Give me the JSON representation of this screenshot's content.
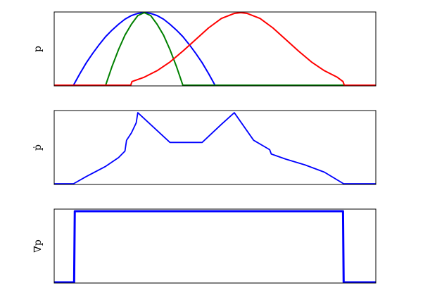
{
  "chart_data": [
    {
      "type": "line",
      "ylabel": "p",
      "xlim": [
        0,
        10
      ],
      "ylim": [
        0,
        1
      ],
      "grid": false,
      "series": [
        {
          "color": "#0000ff",
          "x": [
            0,
            0.6,
            0.8,
            1.0,
            1.2,
            1.4,
            1.6,
            1.8,
            2.0,
            2.2,
            2.4,
            2.6,
            2.8,
            3.0,
            3.2,
            3.4,
            3.6,
            3.8,
            4.0,
            4.2,
            4.4,
            4.6,
            4.8,
            5.0,
            10
          ],
          "y": [
            0,
            0,
            0.16,
            0.31,
            0.44,
            0.56,
            0.67,
            0.76,
            0.84,
            0.91,
            0.96,
            0.99,
            1.0,
            0.99,
            0.96,
            0.91,
            0.84,
            0.76,
            0.67,
            0.56,
            0.44,
            0.31,
            0.16,
            0,
            0
          ]
        },
        {
          "color": "#008000",
          "x": [
            0,
            1.6,
            1.8,
            2.0,
            2.2,
            2.4,
            2.6,
            2.8,
            3.0,
            3.2,
            3.4,
            3.6,
            3.8,
            4.0,
            10
          ],
          "y": [
            0,
            0,
            0.26,
            0.49,
            0.69,
            0.84,
            0.96,
            1.0,
            0.96,
            0.84,
            0.69,
            0.49,
            0.26,
            0,
            0
          ]
        },
        {
          "color": "#ff0000",
          "x": [
            0,
            2.38,
            2.42,
            2.8,
            3.2,
            3.6,
            4.0,
            4.4,
            4.8,
            5.2,
            5.6,
            5.8,
            6.0,
            6.4,
            6.8,
            7.2,
            7.6,
            8.0,
            8.4,
            8.8,
            8.98,
            9.02,
            10
          ],
          "y": [
            0,
            0,
            0.05,
            0.11,
            0.2,
            0.32,
            0.47,
            0.63,
            0.79,
            0.92,
            0.99,
            1.0,
            0.99,
            0.92,
            0.79,
            0.63,
            0.47,
            0.32,
            0.2,
            0.11,
            0.05,
            0,
            0
          ]
        }
      ]
    },
    {
      "type": "line",
      "ylabel": "ṗ",
      "xlim": [
        0,
        10
      ],
      "ylim": [
        0,
        1
      ],
      "grid": false,
      "series": [
        {
          "color": "#0000ff",
          "x": [
            0,
            0.6,
            1.0,
            1.6,
            2.0,
            2.2,
            2.25,
            2.4,
            2.55,
            2.6,
            3.6,
            4.6,
            5.2,
            5.6,
            6.2,
            6.7,
            6.75,
            7.2,
            7.8,
            8.4,
            9.0,
            10
          ],
          "y": [
            0,
            0,
            0.1,
            0.24,
            0.36,
            0.45,
            0.6,
            0.7,
            0.84,
            0.98,
            0.57,
            0.57,
            0.82,
            0.98,
            0.6,
            0.47,
            0.41,
            0.34,
            0.26,
            0.16,
            0,
            0
          ]
        }
      ]
    },
    {
      "type": "line",
      "ylabel": "∇p",
      "xlim": [
        0,
        10
      ],
      "ylim": [
        0,
        1
      ],
      "grid": false,
      "series": [
        {
          "color": "#0000ff",
          "x": [
            0,
            0.62,
            0.64,
            8.98,
            9.0,
            10
          ],
          "y": [
            0,
            0,
            0.98,
            0.98,
            0,
            0
          ]
        }
      ]
    }
  ]
}
